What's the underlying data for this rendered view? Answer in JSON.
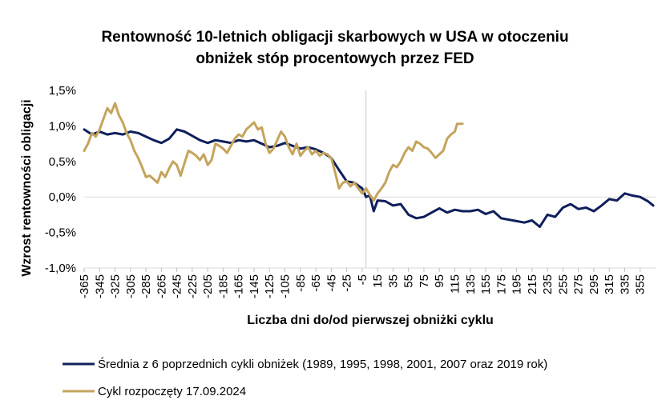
{
  "chart_data": {
    "type": "line",
    "title_line1": "Rentowność 10-letnich obligacji skarbowych w USA w otoczeniu",
    "title_line2": "obniżek stóp procentowych przez FED",
    "xlabel": "Liczba dni do/od pierwszej obniżki cyklu",
    "ylabel": "Wzrost rentowności obligacji",
    "xlim": [
      -365,
      375
    ],
    "ylim": [
      -1.0,
      1.5
    ],
    "grid": false,
    "reference_line_x": 0,
    "legend_position": "bottom",
    "y_ticks": [
      {
        "value": 1.5,
        "label": "1,5%"
      },
      {
        "value": 1.0,
        "label": "1,0%"
      },
      {
        "value": 0.5,
        "label": "0,5%"
      },
      {
        "value": 0.0,
        "label": "0,0%"
      },
      {
        "value": -0.5,
        "label": "-0,5%"
      },
      {
        "value": -1.0,
        "label": "-1,0%"
      }
    ],
    "x_ticks": [
      -365,
      -345,
      -325,
      -305,
      -285,
      -265,
      -245,
      -225,
      -205,
      -185,
      -165,
      -145,
      -125,
      -105,
      -85,
      -65,
      -45,
      -25,
      -5,
      15,
      35,
      55,
      75,
      95,
      115,
      135,
      155,
      175,
      195,
      215,
      235,
      255,
      275,
      295,
      315,
      335,
      355
    ],
    "x_tick_labels": [
      "-365",
      "-345",
      "-325",
      "-305",
      "-285",
      "-265",
      "-245",
      "-225",
      "-205",
      "-185",
      "-165",
      "-145",
      "-125",
      "-105",
      "-85",
      "-65",
      "-45",
      "-25",
      "-5",
      "15",
      "35",
      "55",
      "75",
      "95",
      "115",
      "135",
      "155",
      "175",
      "195",
      "215",
      "235",
      "255",
      "275",
      "295",
      "315",
      "335",
      "355"
    ],
    "series": [
      {
        "name": "Średnia z 6 poprzednich cykli obniżek (1989, 1995, 1998, 2001, 2007 oraz 2019 rok)",
        "color": "#0f1f5c",
        "points": [
          [
            -365,
            0.95
          ],
          [
            -355,
            0.88
          ],
          [
            -345,
            0.92
          ],
          [
            -335,
            0.88
          ],
          [
            -325,
            0.9
          ],
          [
            -315,
            0.88
          ],
          [
            -305,
            0.92
          ],
          [
            -295,
            0.9
          ],
          [
            -285,
            0.85
          ],
          [
            -275,
            0.8
          ],
          [
            -265,
            0.76
          ],
          [
            -255,
            0.82
          ],
          [
            -245,
            0.95
          ],
          [
            -235,
            0.92
          ],
          [
            -225,
            0.86
          ],
          [
            -215,
            0.8
          ],
          [
            -205,
            0.76
          ],
          [
            -195,
            0.8
          ],
          [
            -185,
            0.78
          ],
          [
            -175,
            0.76
          ],
          [
            -165,
            0.8
          ],
          [
            -155,
            0.78
          ],
          [
            -145,
            0.8
          ],
          [
            -135,
            0.75
          ],
          [
            -125,
            0.7
          ],
          [
            -115,
            0.72
          ],
          [
            -105,
            0.76
          ],
          [
            -95,
            0.72
          ],
          [
            -85,
            0.68
          ],
          [
            -75,
            0.7
          ],
          [
            -65,
            0.67
          ],
          [
            -55,
            0.62
          ],
          [
            -45,
            0.55
          ],
          [
            -35,
            0.38
          ],
          [
            -25,
            0.22
          ],
          [
            -15,
            0.2
          ],
          [
            -5,
            0.12
          ],
          [
            0,
            0.0
          ],
          [
            5,
            0.02
          ],
          [
            10,
            -0.2
          ],
          [
            15,
            -0.05
          ],
          [
            25,
            -0.06
          ],
          [
            35,
            -0.12
          ],
          [
            45,
            -0.1
          ],
          [
            55,
            -0.25
          ],
          [
            65,
            -0.3
          ],
          [
            75,
            -0.28
          ],
          [
            85,
            -0.22
          ],
          [
            95,
            -0.16
          ],
          [
            105,
            -0.22
          ],
          [
            115,
            -0.18
          ],
          [
            125,
            -0.2
          ],
          [
            135,
            -0.2
          ],
          [
            145,
            -0.18
          ],
          [
            155,
            -0.24
          ],
          [
            165,
            -0.2
          ],
          [
            175,
            -0.3
          ],
          [
            185,
            -0.32
          ],
          [
            195,
            -0.34
          ],
          [
            205,
            -0.36
          ],
          [
            215,
            -0.33
          ],
          [
            225,
            -0.42
          ],
          [
            235,
            -0.25
          ],
          [
            245,
            -0.28
          ],
          [
            255,
            -0.15
          ],
          [
            265,
            -0.1
          ],
          [
            275,
            -0.17
          ],
          [
            285,
            -0.15
          ],
          [
            295,
            -0.2
          ],
          [
            305,
            -0.12
          ],
          [
            315,
            -0.03
          ],
          [
            325,
            -0.05
          ],
          [
            335,
            0.05
          ],
          [
            345,
            0.02
          ],
          [
            355,
            0.0
          ],
          [
            365,
            -0.06
          ],
          [
            372,
            -0.12
          ]
        ]
      },
      {
        "name": "Cykl rozpoczęty 17.09.2024",
        "color": "#c4a45c",
        "points": [
          [
            -365,
            0.65
          ],
          [
            -360,
            0.75
          ],
          [
            -355,
            0.9
          ],
          [
            -350,
            0.85
          ],
          [
            -345,
            0.95
          ],
          [
            -340,
            1.1
          ],
          [
            -335,
            1.25
          ],
          [
            -330,
            1.18
          ],
          [
            -325,
            1.32
          ],
          [
            -320,
            1.15
          ],
          [
            -315,
            1.05
          ],
          [
            -310,
            0.9
          ],
          [
            -305,
            0.8
          ],
          [
            -300,
            0.65
          ],
          [
            -295,
            0.55
          ],
          [
            -290,
            0.42
          ],
          [
            -285,
            0.28
          ],
          [
            -280,
            0.3
          ],
          [
            -275,
            0.25
          ],
          [
            -270,
            0.2
          ],
          [
            -265,
            0.35
          ],
          [
            -260,
            0.28
          ],
          [
            -255,
            0.4
          ],
          [
            -250,
            0.5
          ],
          [
            -245,
            0.45
          ],
          [
            -240,
            0.3
          ],
          [
            -235,
            0.48
          ],
          [
            -230,
            0.65
          ],
          [
            -225,
            0.62
          ],
          [
            -220,
            0.58
          ],
          [
            -215,
            0.52
          ],
          [
            -210,
            0.6
          ],
          [
            -205,
            0.45
          ],
          [
            -200,
            0.52
          ],
          [
            -195,
            0.75
          ],
          [
            -190,
            0.72
          ],
          [
            -185,
            0.68
          ],
          [
            -180,
            0.62
          ],
          [
            -175,
            0.72
          ],
          [
            -170,
            0.82
          ],
          [
            -165,
            0.88
          ],
          [
            -160,
            0.85
          ],
          [
            -155,
            0.95
          ],
          [
            -150,
            1.0
          ],
          [
            -145,
            1.05
          ],
          [
            -140,
            0.95
          ],
          [
            -135,
            0.98
          ],
          [
            -130,
            0.75
          ],
          [
            -125,
            0.62
          ],
          [
            -120,
            0.68
          ],
          [
            -115,
            0.8
          ],
          [
            -110,
            0.92
          ],
          [
            -105,
            0.85
          ],
          [
            -100,
            0.7
          ],
          [
            -95,
            0.6
          ],
          [
            -90,
            0.75
          ],
          [
            -85,
            0.58
          ],
          [
            -80,
            0.65
          ],
          [
            -75,
            0.7
          ],
          [
            -70,
            0.6
          ],
          [
            -65,
            0.65
          ],
          [
            -60,
            0.58
          ],
          [
            -55,
            0.62
          ],
          [
            -50,
            0.6
          ],
          [
            -45,
            0.55
          ],
          [
            -40,
            0.35
          ],
          [
            -35,
            0.12
          ],
          [
            -30,
            0.2
          ],
          [
            -25,
            0.22
          ],
          [
            -20,
            0.15
          ],
          [
            -15,
            0.2
          ],
          [
            -10,
            0.12
          ],
          [
            -5,
            0.05
          ],
          [
            0,
            0.12
          ],
          [
            5,
            0.03
          ],
          [
            10,
            -0.05
          ],
          [
            15,
            0.05
          ],
          [
            20,
            0.12
          ],
          [
            25,
            0.2
          ],
          [
            30,
            0.35
          ],
          [
            35,
            0.45
          ],
          [
            40,
            0.42
          ],
          [
            45,
            0.5
          ],
          [
            50,
            0.62
          ],
          [
            55,
            0.7
          ],
          [
            60,
            0.65
          ],
          [
            65,
            0.78
          ],
          [
            70,
            0.75
          ],
          [
            75,
            0.7
          ],
          [
            80,
            0.68
          ],
          [
            85,
            0.62
          ],
          [
            90,
            0.55
          ],
          [
            95,
            0.6
          ],
          [
            100,
            0.65
          ],
          [
            105,
            0.82
          ],
          [
            110,
            0.88
          ],
          [
            115,
            0.92
          ],
          [
            118,
            1.03
          ],
          [
            125,
            1.03
          ]
        ]
      }
    ]
  },
  "legend": {
    "series_1_label": "Średnia z 6 poprzednich cykli obniżek (1989, 1995, 1998, 2001, 2007 oraz 2019 rok)",
    "series_2_label": "Cykl rozpoczęty 17.09.2024"
  }
}
